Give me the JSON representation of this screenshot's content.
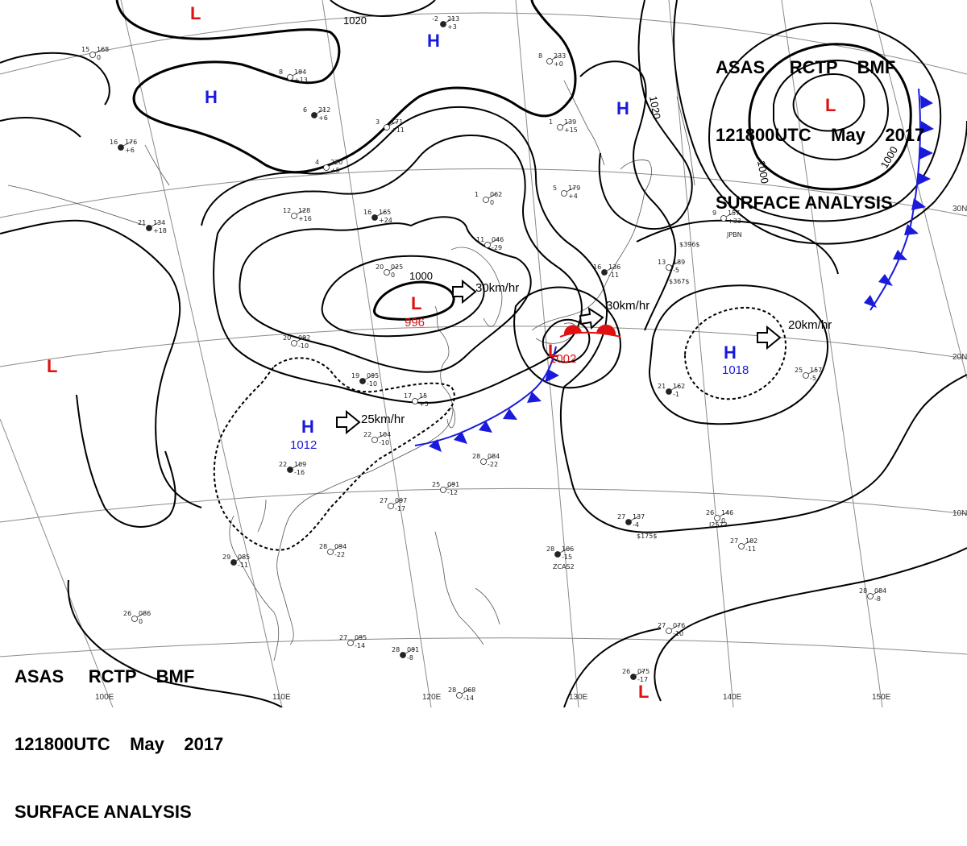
{
  "header": {
    "line1": [
      "ASAS",
      "RCTP",
      "BMF"
    ],
    "line2": [
      "121800UTC",
      "May",
      "2017"
    ],
    "line3": "SURFACE ANALYSIS"
  },
  "isobar_labels": [
    "1020",
    "1000",
    "1020",
    "1000",
    "1000"
  ],
  "pressure_centers": [
    {
      "type": "H",
      "value": ""
    },
    {
      "type": "H",
      "value": ""
    },
    {
      "type": "H",
      "value": ""
    },
    {
      "type": "H",
      "value": "1012"
    },
    {
      "type": "H",
      "value": "1018"
    },
    {
      "type": "L",
      "value": ""
    },
    {
      "type": "L",
      "value": ""
    },
    {
      "type": "L",
      "value": "996"
    },
    {
      "type": "L",
      "value": "1002"
    },
    {
      "type": "L",
      "value": ""
    },
    {
      "type": "L",
      "value": ""
    }
  ],
  "movement_labels": [
    "30km/hr",
    "30km/hr",
    "20km/hr",
    "25km/hr"
  ],
  "lat_labels": [
    "30N",
    "20N",
    "10N"
  ],
  "lon_labels": [
    "100E",
    "110E",
    "120E",
    "130E",
    "140E",
    "150E"
  ],
  "stations": [
    {
      "a": "-2",
      "b": "213",
      "c": "+3"
    },
    {
      "a": "15",
      "b": "168",
      "c": "0"
    },
    {
      "a": "8",
      "b": "194",
      "c": "+13"
    },
    {
      "a": "6",
      "b": "212",
      "c": "+6"
    },
    {
      "a": "3",
      "b": "171",
      "c": "+11"
    },
    {
      "a": "1",
      "b": "139",
      "c": "+15"
    },
    {
      "a": "16",
      "b": "176",
      "c": "+6"
    },
    {
      "a": "4",
      "b": "220",
      "c": "+5"
    },
    {
      "a": "12",
      "b": "128",
      "c": "+16"
    },
    {
      "a": "16",
      "b": "165",
      "c": "+24"
    },
    {
      "a": "11",
      "b": "046",
      "c": "-29"
    },
    {
      "a": "1",
      "b": "062",
      "c": "0"
    },
    {
      "a": "21",
      "b": "134",
      "c": "+18"
    },
    {
      "a": "20",
      "b": "092",
      "c": "-10"
    },
    {
      "a": "20",
      "b": "025",
      "c": "0"
    },
    {
      "a": "19",
      "b": "095",
      "c": "-10"
    },
    {
      "a": "17",
      "b": "15",
      "c": "+5"
    },
    {
      "a": "22",
      "b": "104",
      "c": "-10"
    },
    {
      "a": "22",
      "b": "109",
      "c": "-16"
    },
    {
      "a": "27",
      "b": "097",
      "c": "-17"
    },
    {
      "a": "28",
      "b": "094",
      "c": "-22"
    },
    {
      "a": "29",
      "b": "085",
      "c": "-11"
    },
    {
      "a": "25",
      "b": "091",
      "c": "-12"
    },
    {
      "a": "28",
      "b": "084",
      "c": "-22"
    },
    {
      "a": "27",
      "b": "137",
      "c": "-4"
    },
    {
      "a": "26",
      "b": "146",
      "c": "0"
    },
    {
      "a": "27",
      "b": "102",
      "c": "-11"
    },
    {
      "a": "28",
      "b": "106",
      "c": "-15"
    },
    {
      "a": "26",
      "b": "086",
      "c": "0"
    },
    {
      "a": "27",
      "b": "095",
      "c": "-14"
    },
    {
      "a": "28",
      "b": "091",
      "c": "-8"
    },
    {
      "a": "28",
      "b": "068",
      "c": "-14"
    },
    {
      "a": "27",
      "b": "076",
      "c": "-10"
    },
    {
      "a": "26",
      "b": "075",
      "c": "-17"
    },
    {
      "a": "28",
      "b": "084",
      "c": "-8"
    },
    {
      "a": "25",
      "b": "157",
      "c": "-5"
    },
    {
      "a": "21",
      "b": "162",
      "c": "-1"
    },
    {
      "a": "13",
      "b": "189",
      "c": "-5"
    },
    {
      "a": "9",
      "b": "157",
      "c": "+33"
    },
    {
      "a": "16",
      "b": "136",
      "c": "-11"
    },
    {
      "a": "5",
      "b": "179",
      "c": "+4"
    },
    {
      "a": "8",
      "b": "233",
      "c": "+0"
    }
  ],
  "misc_labels": [
    "$396$",
    "$367$",
    "$175$",
    "JPBN",
    "ZCAS2",
    "J2573"
  ]
}
